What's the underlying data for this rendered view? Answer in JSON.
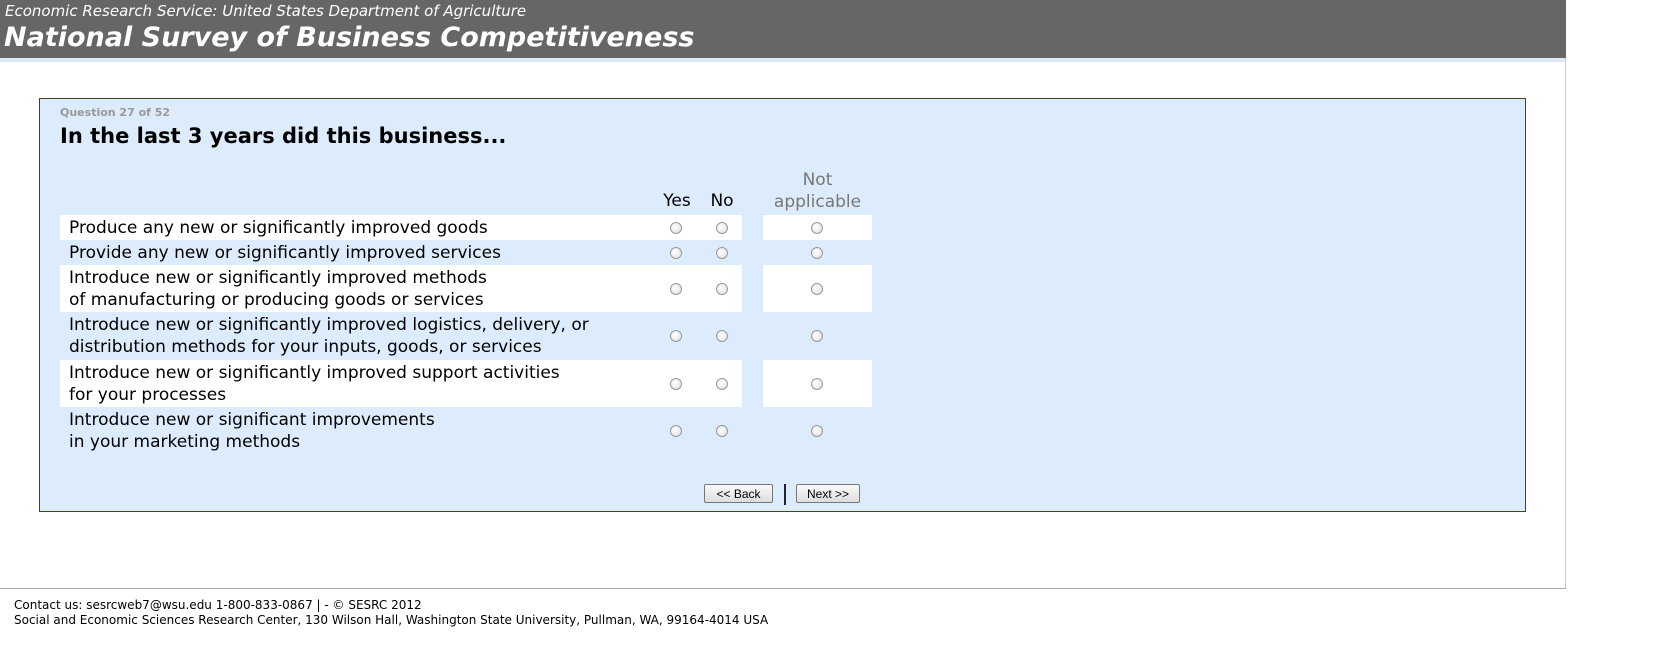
{
  "header": {
    "subtitle": "Economic Research Service: United States Department of Agriculture",
    "title": "National Survey of Business Competitiveness"
  },
  "question": {
    "number": "Question 27 of 52",
    "text": "In the last 3 years did this business...",
    "columns": {
      "yes": "Yes",
      "no": "No",
      "na": "Not\napplicable"
    },
    "rows": [
      {
        "label": "Produce any new or significantly improved goods"
      },
      {
        "label": "Provide any new or significantly improved services"
      },
      {
        "label": "Introduce new or significantly improved methods\nof manufacturing or producing goods or services"
      },
      {
        "label": "Introduce new or significantly improved logistics, delivery, or\ndistribution methods for your inputs, goods, or services"
      },
      {
        "label": "Introduce new or significantly improved support activities\nfor your processes"
      },
      {
        "label": "Introduce new or significant improvements\nin your marketing methods"
      }
    ]
  },
  "nav": {
    "back": "<< Back",
    "next": "Next >>"
  },
  "footer": {
    "contact": "Contact us: sesrcweb7@wsu.edu 1-800-833-0867 | - © SESRC 2012",
    "address": "Social and Economic Sciences Research Center, 130 Wilson Hall, Washington State University, Pullman, WA, 99164-4014 USA"
  },
  "colors": {
    "header": "#666666",
    "panel": "#ddecfc",
    "border": "#3a4a10"
  }
}
